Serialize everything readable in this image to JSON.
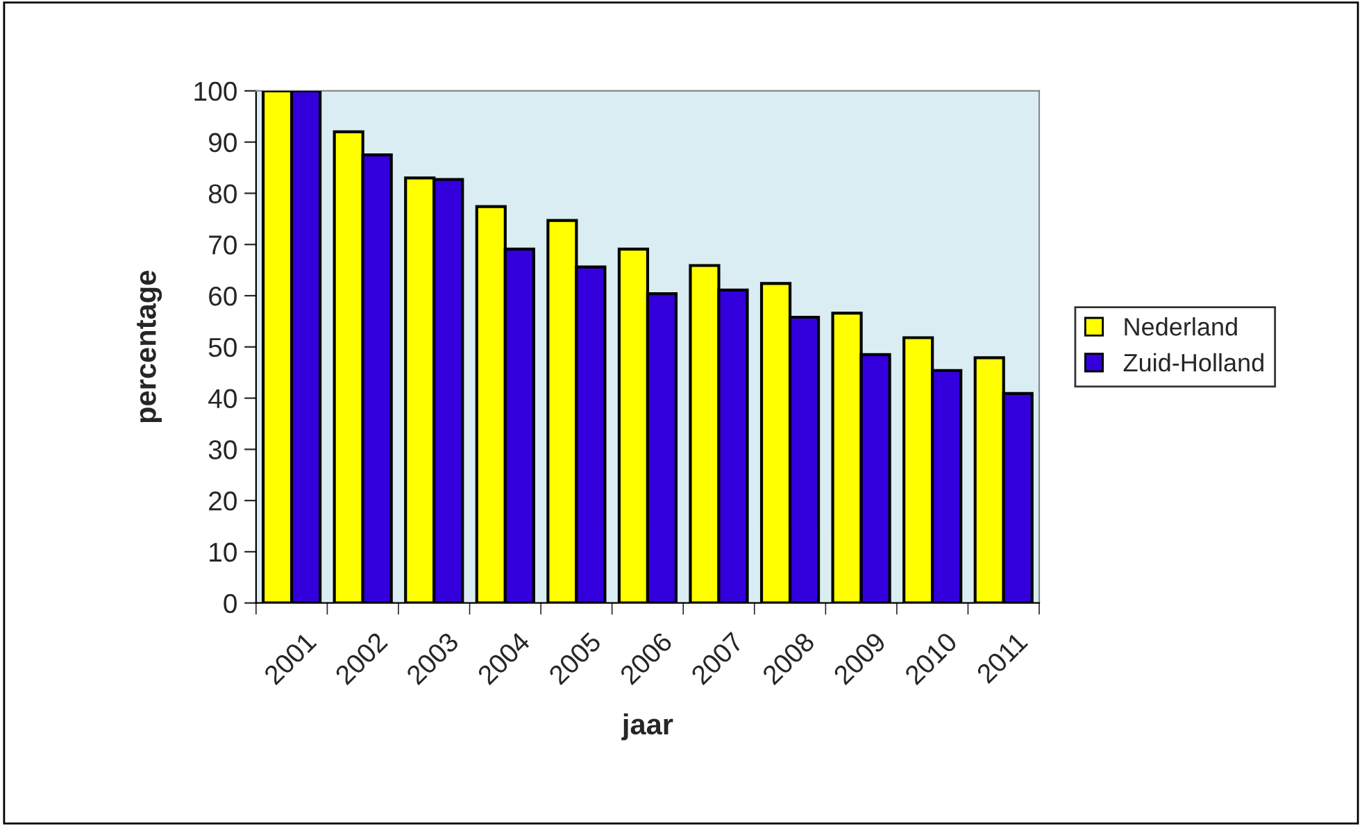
{
  "chart_data": {
    "type": "bar",
    "xlabel": "jaar",
    "ylabel": "percentage",
    "categories": [
      "2001",
      "2002",
      "2003",
      "2004",
      "2005",
      "2006",
      "2007",
      "2008",
      "2009",
      "2010",
      "2011"
    ],
    "series": [
      {
        "name": "Nederland",
        "color": "#ffff00",
        "values": [
          100,
          92.0,
          83.0,
          77.4,
          74.7,
          69.1,
          65.9,
          62.4,
          56.6,
          51.8,
          47.9
        ]
      },
      {
        "name": "Zuid-Holland",
        "color": "#3300dd",
        "values": [
          100,
          87.5,
          82.7,
          69.1,
          65.6,
          60.4,
          61.1,
          55.8,
          48.5,
          45.4,
          40.9
        ]
      }
    ],
    "ylim": [
      0,
      100
    ],
    "yticks": [
      0,
      10,
      20,
      30,
      40,
      50,
      60,
      70,
      80,
      90,
      100
    ],
    "grid": false,
    "legend": "right"
  }
}
